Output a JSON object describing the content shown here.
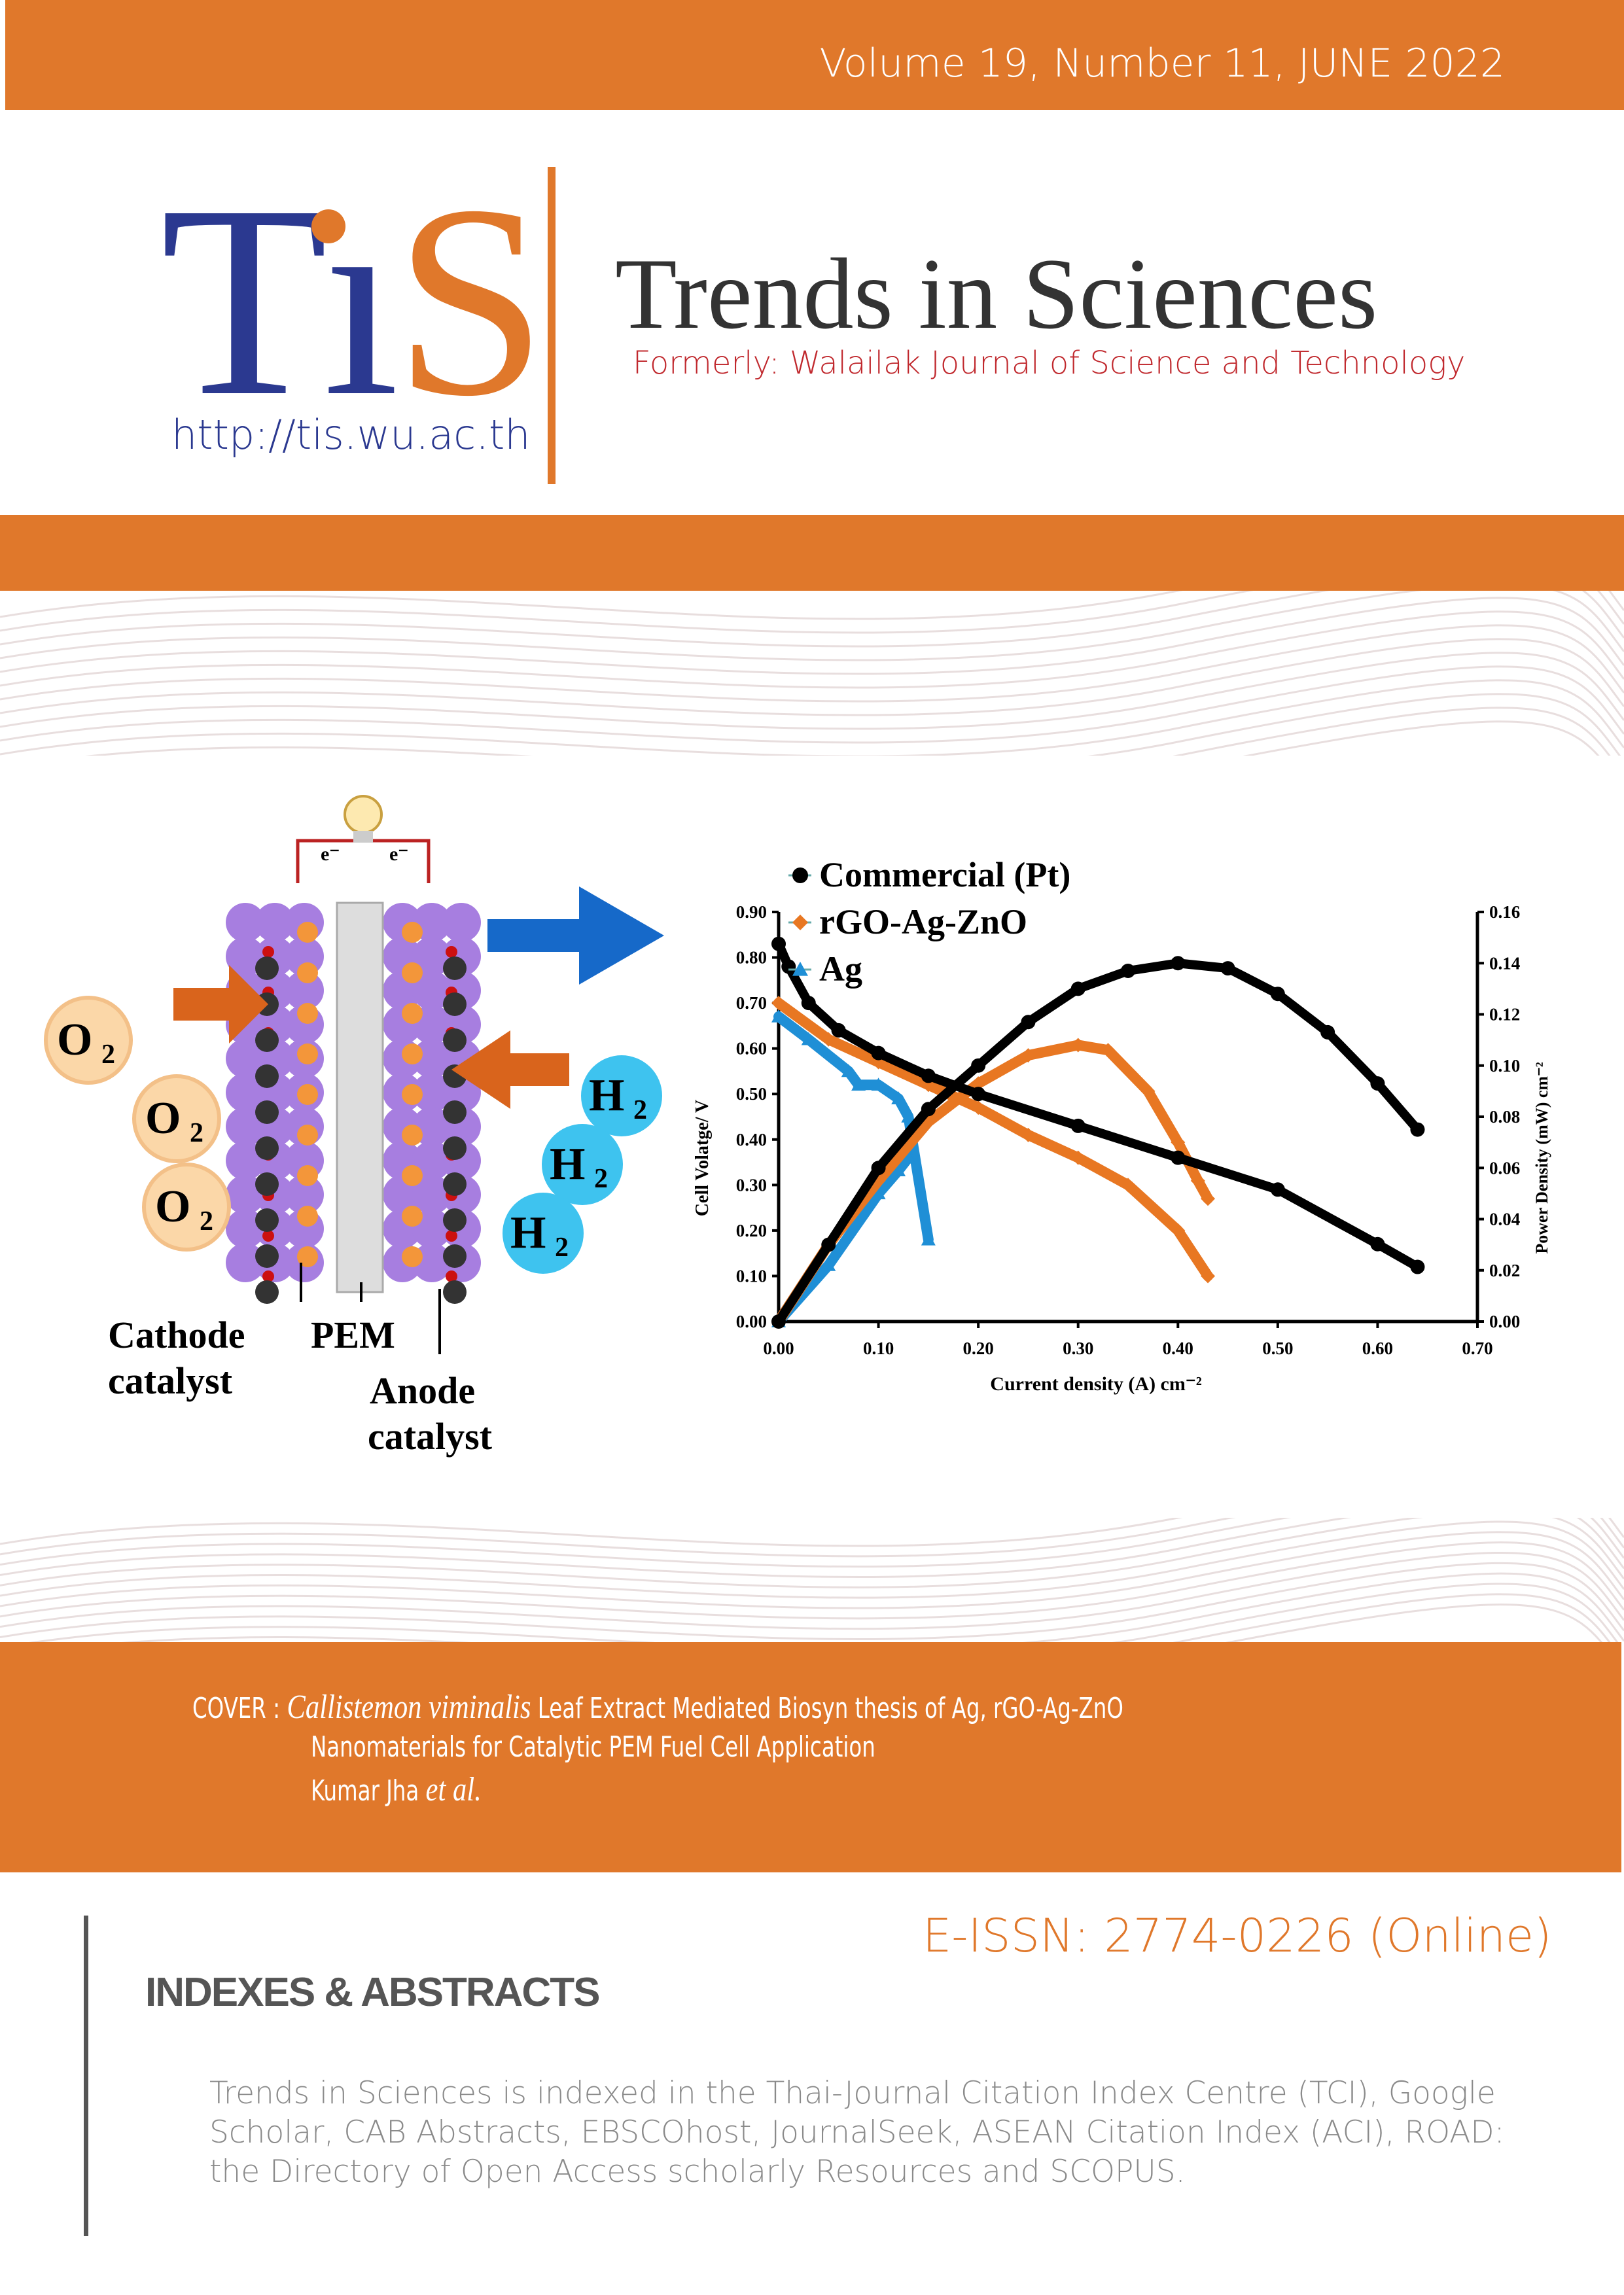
{
  "header": {
    "volume": "Volume 19, Number 11,  JUNE 2022"
  },
  "logo": {
    "text": "TiS",
    "url": "http://tis.wu.ac.th"
  },
  "journal": {
    "title": "Trends in Sciences",
    "formerly": "Formerly: Walailak Journal of Science and Technology"
  },
  "diagram": {
    "o2": "O",
    "h2": "H",
    "sub": "2",
    "electron": "e⁻",
    "cathode1": "Cathode",
    "cathode2": "catalyst",
    "pem": "PEM",
    "anode1": "Anode",
    "anode2": "catalyst"
  },
  "chart_data": {
    "type": "scatter",
    "xlabel": "Current density (A) cm⁻²",
    "ylabel": "Cell Volatge/ V",
    "y2label": "Power Density (mW) cm⁻²",
    "xlim": [
      0,
      0.7
    ],
    "ylim": [
      0,
      0.9
    ],
    "y2lim": [
      0,
      0.16
    ],
    "xticks": [
      "0.00",
      "0.10",
      "0.20",
      "0.30",
      "0.40",
      "0.50",
      "0.60",
      "0.70"
    ],
    "yticks": [
      "0.00",
      "0.10",
      "0.20",
      "0.30",
      "0.40",
      "0.50",
      "0.60",
      "0.70",
      "0.80",
      "0.90"
    ],
    "y2ticks": [
      "0.00",
      "0.02",
      "0.04",
      "0.06",
      "0.08",
      "0.10",
      "0.12",
      "0.14",
      "0.16"
    ],
    "legend": {
      "placement": "top-left",
      "entries": [
        "Commercial (Pt)",
        "rGO-Ag-ZnO",
        "Ag"
      ]
    },
    "series": [
      {
        "name": "Commercial (Pt)",
        "color": "#000000",
        "marker": "circle",
        "voltage": [
          [
            0,
            0.83
          ],
          [
            0.01,
            0.78
          ],
          [
            0.03,
            0.7
          ],
          [
            0.06,
            0.64
          ],
          [
            0.1,
            0.59
          ],
          [
            0.15,
            0.54
          ],
          [
            0.2,
            0.5
          ],
          [
            0.3,
            0.43
          ],
          [
            0.4,
            0.36
          ],
          [
            0.5,
            0.29
          ],
          [
            0.6,
            0.17
          ],
          [
            0.64,
            0.12
          ]
        ],
        "power": [
          [
            0,
            0
          ],
          [
            0.05,
            0.03
          ],
          [
            0.1,
            0.06
          ],
          [
            0.15,
            0.083
          ],
          [
            0.2,
            0.1
          ],
          [
            0.25,
            0.117
          ],
          [
            0.3,
            0.13
          ],
          [
            0.35,
            0.137
          ],
          [
            0.4,
            0.14
          ],
          [
            0.45,
            0.138
          ],
          [
            0.5,
            0.128
          ],
          [
            0.55,
            0.113
          ],
          [
            0.6,
            0.093
          ],
          [
            0.64,
            0.075
          ]
        ]
      },
      {
        "name": "rGO-Ag-ZnO",
        "color": "#e87722",
        "marker": "diamond",
        "voltage": [
          [
            0,
            0.7
          ],
          [
            0.05,
            0.62
          ],
          [
            0.1,
            0.57
          ],
          [
            0.15,
            0.52
          ],
          [
            0.2,
            0.47
          ],
          [
            0.25,
            0.41
          ],
          [
            0.3,
            0.36
          ],
          [
            0.35,
            0.3
          ],
          [
            0.4,
            0.2
          ],
          [
            0.43,
            0.1
          ]
        ],
        "power": [
          [
            0,
            0
          ],
          [
            0.05,
            0.03
          ],
          [
            0.1,
            0.055
          ],
          [
            0.15,
            0.078
          ],
          [
            0.2,
            0.093
          ],
          [
            0.25,
            0.104
          ],
          [
            0.3,
            0.108
          ],
          [
            0.33,
            0.106
          ],
          [
            0.37,
            0.09
          ],
          [
            0.4,
            0.07
          ],
          [
            0.42,
            0.055
          ],
          [
            0.43,
            0.048
          ]
        ]
      },
      {
        "name": "Ag",
        "color": "#1f8fd6",
        "marker": "triangle",
        "voltage": [
          [
            0,
            0.67
          ],
          [
            0.03,
            0.62
          ],
          [
            0.07,
            0.55
          ],
          [
            0.08,
            0.52
          ],
          [
            0.1,
            0.52
          ],
          [
            0.12,
            0.49
          ],
          [
            0.13,
            0.45
          ],
          [
            0.15,
            0.18
          ]
        ],
        "power": [
          [
            0,
            0
          ],
          [
            0.05,
            0.022
          ],
          [
            0.1,
            0.05
          ],
          [
            0.12,
            0.059
          ],
          [
            0.13,
            0.064
          ]
        ]
      }
    ]
  },
  "cover": {
    "label": "COVER : ",
    "species": "Callistemon viminalis",
    "line1": " Leaf Extract Mediated Biosyn thesis of Ag, rGO-Ag-ZnO",
    "line2": "Nanomaterials for Catalytic PEM Fuel Cell Application",
    "author": "Kumar Jha ",
    "etal": "et al."
  },
  "issn": "E-ISSN: 2774-0226 (Online)",
  "indexes": {
    "heading": "INDEXES & ABSTRACTS",
    "text": "Trends in Sciences is indexed in the Thai-Journal Citation Index Centre (TCI), Google Scholar, CAB Abstracts, EBSCOhost, JournalSeek, ASEAN Citation Index (ACI),  ROAD: the Directory of Open Access scholarly Resources and SCOPUS."
  },
  "colors": {
    "accent": "#e0782b",
    "navy": "#2b3990"
  }
}
